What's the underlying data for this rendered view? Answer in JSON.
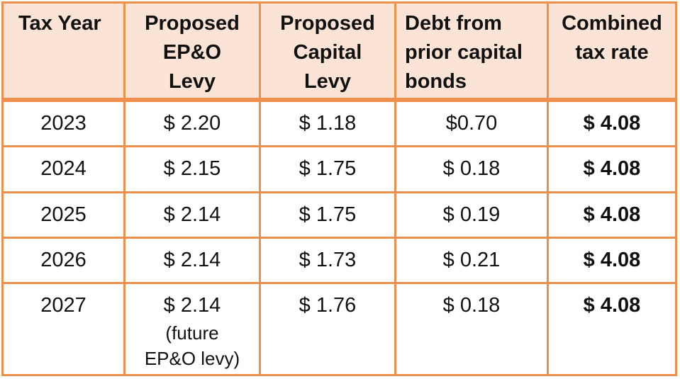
{
  "table": {
    "headers": [
      [
        "Tax Year"
      ],
      [
        "Proposed",
        "EP&O",
        "Levy"
      ],
      [
        "Proposed",
        "Capital",
        "Levy"
      ],
      [
        "Debt from",
        "prior capital",
        "bonds"
      ],
      [
        "Combined",
        "tax rate"
      ]
    ],
    "rows": [
      {
        "year": "2023",
        "epo": "$ 2.20",
        "capital": "$ 1.18",
        "debt": "$0.70",
        "combined": "$ 4.08"
      },
      {
        "year": "2024",
        "epo": "$ 2.15",
        "capital": "$ 1.75",
        "debt": "$ 0.18",
        "combined": "$ 4.08"
      },
      {
        "year": "2025",
        "epo": "$ 2.14",
        "capital": "$ 1.75",
        "debt": "$ 0.19",
        "combined": "$ 4.08"
      },
      {
        "year": "2026",
        "epo": "$ 2.14",
        "capital": "$ 1.73",
        "debt": "$ 0.21",
        "combined": "$ 4.08"
      },
      {
        "year": "2027",
        "epo": "$ 2.14",
        "epo_note": [
          "(future",
          "EP&O levy)"
        ],
        "capital": "$ 1.76",
        "debt": "$ 0.18",
        "combined": "$ 4.08"
      }
    ],
    "colors": {
      "border": "#EE8F4B",
      "header_fill": "#FBE4D5"
    }
  }
}
